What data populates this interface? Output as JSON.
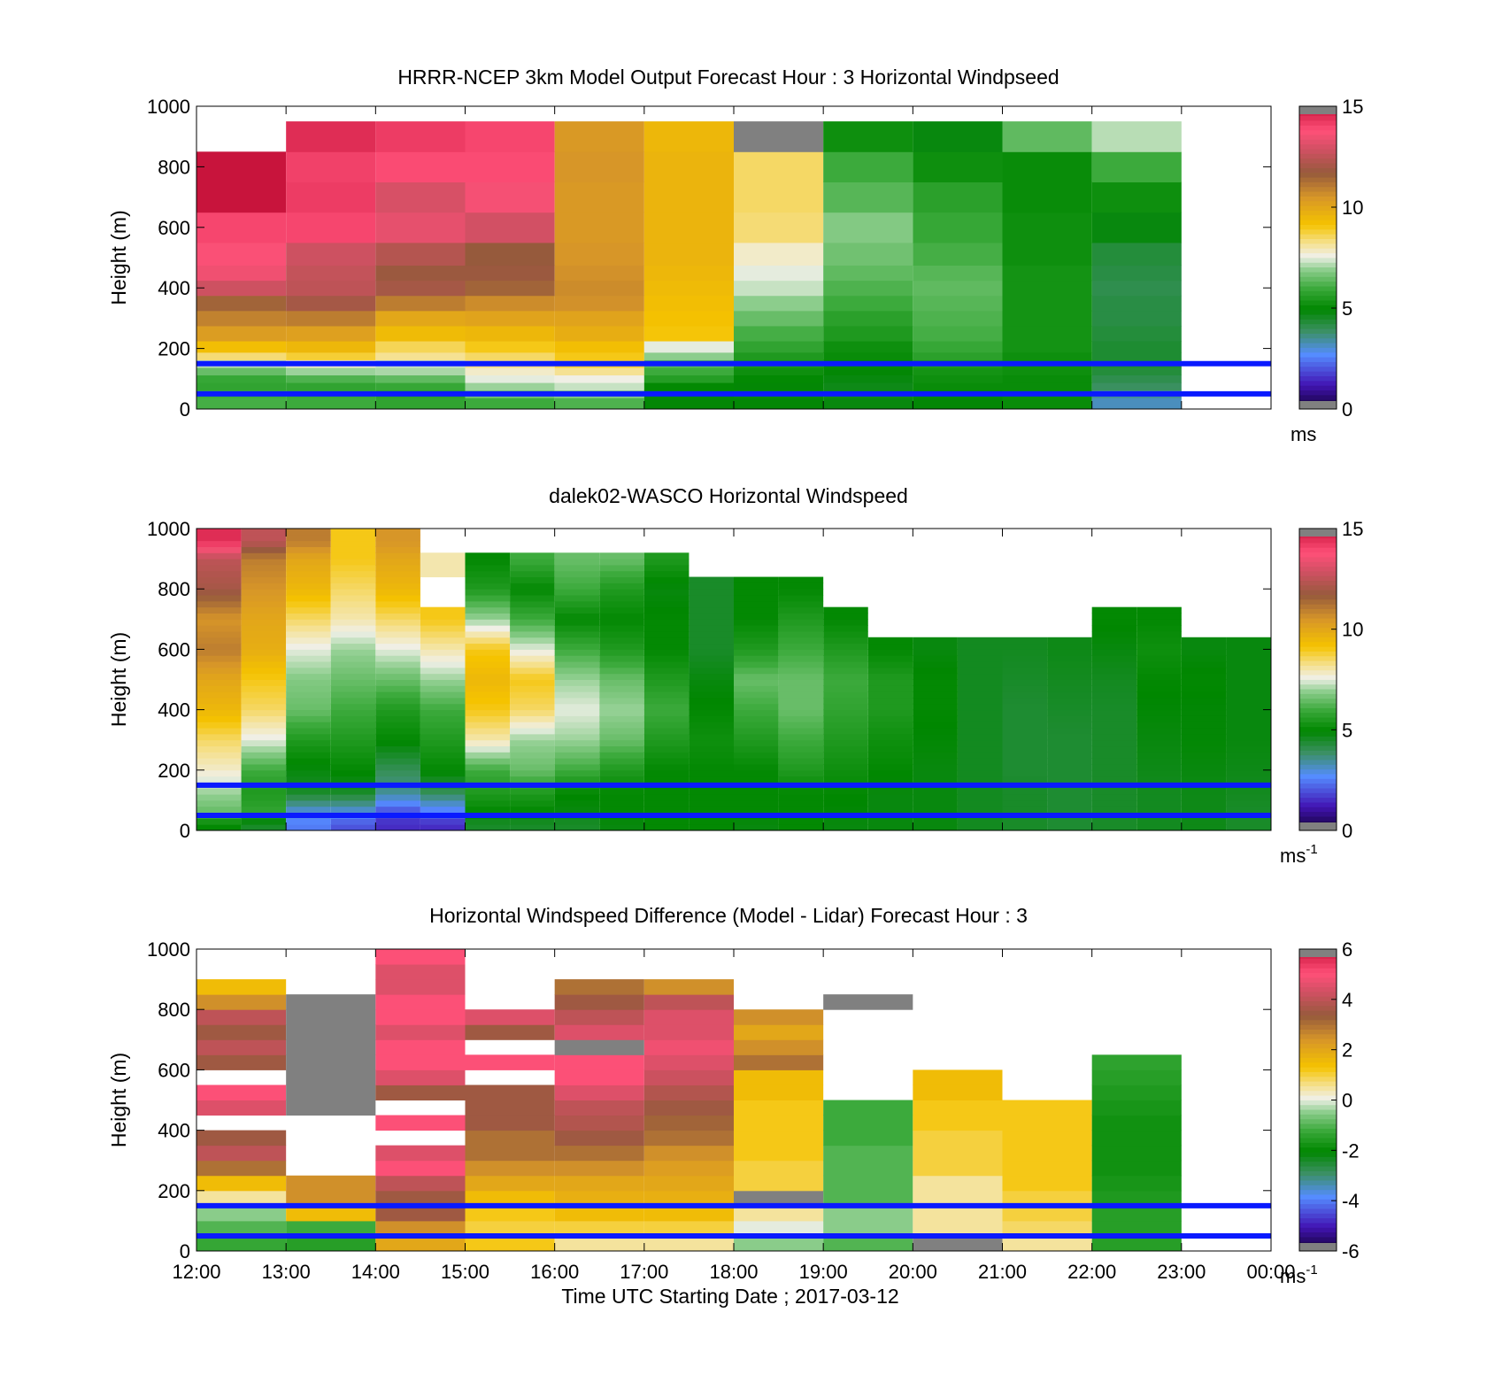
{
  "figure": {
    "shared_xlabel": "Time UTC  Starting Date ; 2017-03-12",
    "x_tick_labels": [
      "12:00",
      "13:00",
      "14:00",
      "15:00",
      "16:00",
      "17:00",
      "18:00",
      "19:00",
      "20:00",
      "21:00",
      "22:00",
      "23:00",
      "00:00"
    ],
    "y_tick_labels": [
      "0",
      "200",
      "400",
      "600",
      "800",
      "1000"
    ]
  },
  "chart_data": [
    {
      "type": "heatmap",
      "title": "HRRR-NCEP 3km Model Output   Forecast Hour : 3 Horizontal Windpseed",
      "ylabel": "Height (m)",
      "xlabel": "",
      "xlim_hours": [
        12,
        24
      ],
      "ylim": [
        0,
        1000
      ],
      "grid": false,
      "reference_lines_m": [
        150,
        50
      ],
      "reference_line_color": "#0a1aff",
      "colorbar": {
        "min": 0,
        "max": 15,
        "ticks": [
          "0",
          "5",
          "10",
          "15"
        ],
        "unit_base": "ms",
        "unit_sup": ""
      },
      "heights": [
        25,
        50,
        75,
        100,
        125,
        150,
        175,
        200,
        250,
        300,
        350,
        400,
        450,
        500,
        600,
        700,
        800,
        900
      ],
      "columns": [
        {
          "start_hour": 12,
          "values": [
            6.1,
            6.0,
            5.8,
            5.9,
            6.5,
            7.2,
            8.4,
            9.3,
            10.3,
            10.9,
            11.5,
            12.8,
            13.5,
            13.7,
            14.0,
            15.0,
            15.0,
            null
          ]
        },
        {
          "start_hour": 13,
          "values": [
            6.0,
            5.9,
            5.8,
            6.2,
            7.0,
            7.8,
            8.8,
            9.5,
            10.2,
            11.0,
            12.0,
            12.5,
            12.6,
            12.8,
            14.0,
            14.2,
            14.1,
            14.5
          ]
        },
        {
          "start_hour": 14,
          "values": [
            5.8,
            5.7,
            5.9,
            6.4,
            7.1,
            7.3,
            8.2,
            8.6,
            9.4,
            10.0,
            11.0,
            12.0,
            11.8,
            12.3,
            13.3,
            13.0,
            13.9,
            14.2
          ]
        },
        {
          "start_hour": 15,
          "values": [
            6.0,
            6.6,
            7.0,
            7.5,
            7.8,
            8.3,
            8.5,
            9.0,
            9.5,
            10.1,
            10.7,
            11.5,
            11.8,
            11.7,
            12.9,
            13.6,
            13.9,
            14.0
          ]
        },
        {
          "start_hour": 16,
          "values": [
            6.2,
            6.8,
            7.3,
            7.6,
            8.2,
            8.8,
            9.0,
            9.3,
            9.8,
            10.1,
            10.6,
            10.7,
            10.6,
            10.5,
            10.4,
            10.4,
            10.5,
            10.4
          ]
        },
        {
          "start_hour": 17,
          "values": [
            4.9,
            4.9,
            5.0,
            5.6,
            6.0,
            6.3,
            6.9,
            7.5,
            9.1,
            9.2,
            9.3,
            9.4,
            9.5,
            9.6,
            9.6,
            9.6,
            9.6,
            9.5
          ]
        },
        {
          "start_hour": 18,
          "values": [
            4.9,
            4.8,
            4.9,
            5.0,
            5.2,
            5.4,
            5.5,
            5.8,
            6.1,
            6.5,
            6.9,
            7.3,
            7.5,
            7.8,
            8.4,
            8.5,
            8.5,
            15.2
          ]
        },
        {
          "start_hour": 19,
          "values": [
            4.8,
            4.7,
            4.7,
            4.8,
            4.9,
            5.0,
            5.1,
            5.2,
            5.5,
            5.7,
            6.0,
            6.2,
            6.4,
            6.6,
            6.8,
            6.3,
            6.0,
            5.2
          ]
        },
        {
          "start_hour": 20,
          "values": [
            4.9,
            5.0,
            5.1,
            5.2,
            5.3,
            5.5,
            5.7,
            5.9,
            6.1,
            6.2,
            6.3,
            6.4,
            6.3,
            6.1,
            5.9,
            5.7,
            5.2,
            4.8
          ]
        },
        {
          "start_hour": 21,
          "values": [
            5.1,
            5.1,
            5.1,
            5.1,
            5.2,
            5.2,
            5.2,
            5.3,
            5.3,
            5.3,
            5.3,
            5.3,
            5.3,
            5.2,
            5.2,
            5.1,
            5.1,
            6.4
          ]
        },
        {
          "start_hour": 22,
          "values": [
            3.2,
            3.5,
            3.9,
            4.1,
            4.3,
            4.4,
            4.4,
            4.4,
            4.3,
            4.2,
            4.2,
            4.1,
            4.2,
            4.3,
            4.8,
            5.2,
            6.0,
            7.2
          ]
        },
        {
          "start_hour": 23,
          "values": [
            null,
            null,
            null,
            null,
            null,
            null,
            null,
            null,
            null,
            null,
            null,
            null,
            null,
            null,
            null,
            null,
            null,
            null
          ]
        }
      ]
    },
    {
      "type": "heatmap",
      "title": "dalek02-WASCO  Horizontal Windspeed",
      "ylabel": "Height (m)",
      "xlabel": "",
      "xlim_hours": [
        12,
        24
      ],
      "ylim": [
        0,
        1000
      ],
      "grid": false,
      "reference_lines_m": [
        150,
        50
      ],
      "reference_line_color": "#0a1aff",
      "colorbar": {
        "min": 0,
        "max": 15,
        "ticks": [
          "0",
          "5",
          "10",
          "15"
        ],
        "unit_base": "ms",
        "unit_sup": "-1"
      },
      "profile_bins_m": [
        20,
        65,
        125,
        200,
        300,
        400,
        500,
        600,
        700,
        800,
        900,
        960
      ],
      "profiles": [
        {
          "hour": 12.0,
          "values": [
            5.0,
            6.5,
            7.0,
            7.8,
            8.5,
            9.5,
            10.0,
            11.0,
            10.5,
            12.0,
            12.5,
            14.5
          ]
        },
        {
          "hour": 12.5,
          "values": [
            4.5,
            5.8,
            5.5,
            6.0,
            7.5,
            8.5,
            9.0,
            9.8,
            10.0,
            10.5,
            11.0,
            12.5
          ]
        },
        {
          "hour": 13.0,
          "values": [
            2.5,
            3.0,
            4.5,
            4.8,
            5.5,
            6.5,
            6.8,
            7.5,
            8.5,
            9.5,
            10.0,
            11.0
          ]
        },
        {
          "hour": 13.5,
          "values": [
            2.0,
            3.0,
            4.5,
            5.0,
            5.5,
            6.0,
            6.5,
            7.0,
            8.0,
            8.5,
            9.0,
            9.0
          ]
        },
        {
          "hour": 14.0,
          "values": [
            1.5,
            2.0,
            3.5,
            4.0,
            5.0,
            5.5,
            6.5,
            7.5,
            8.5,
            9.5,
            10.0,
            10.5
          ]
        },
        {
          "hour": 14.5,
          "values": [
            1.5,
            2.5,
            4.0,
            5.0,
            5.5,
            6.0,
            7.0,
            8.0,
            9.0,
            null,
            8.0,
            null
          ]
        },
        {
          "hour": 15.0,
          "values": [
            4.5,
            5.0,
            5.5,
            6.0,
            8.0,
            9.0,
            9.5,
            9.0,
            7.0,
            5.5,
            5.0,
            null
          ]
        },
        {
          "hour": 15.5,
          "values": [
            4.5,
            5.0,
            5.5,
            6.5,
            7.0,
            8.5,
            9.0,
            7.5,
            6.0,
            5.0,
            6.0,
            null
          ]
        },
        {
          "hour": 16.0,
          "values": [
            4.5,
            4.8,
            5.0,
            6.0,
            7.0,
            7.5,
            7.0,
            6.0,
            5.0,
            6.0,
            6.5,
            null
          ]
        },
        {
          "hour": 16.5,
          "values": [
            4.8,
            5.0,
            5.0,
            5.5,
            6.5,
            7.0,
            6.5,
            5.5,
            5.0,
            5.5,
            6.5,
            null
          ]
        },
        {
          "hour": 17.0,
          "values": [
            5.0,
            5.0,
            5.0,
            5.0,
            5.5,
            6.0,
            5.5,
            5.0,
            5.0,
            4.8,
            5.5,
            null
          ]
        },
        {
          "hour": 17.5,
          "values": [
            5.0,
            5.0,
            5.0,
            5.0,
            5.2,
            5.0,
            4.8,
            4.5,
            4.5,
            4.5,
            null,
            null
          ]
        },
        {
          "hour": 18.0,
          "values": [
            4.8,
            5.0,
            5.0,
            5.0,
            5.5,
            6.0,
            6.5,
            5.5,
            5.0,
            5.0,
            null,
            null
          ]
        },
        {
          "hour": 18.5,
          "values": [
            5.0,
            5.0,
            5.0,
            5.5,
            6.0,
            6.5,
            6.5,
            6.0,
            5.5,
            5.0,
            null,
            null
          ]
        },
        {
          "hour": 19.0,
          "values": [
            4.8,
            4.9,
            5.0,
            5.2,
            5.5,
            5.8,
            6.0,
            5.5,
            5.0,
            null,
            null,
            null
          ]
        },
        {
          "hour": 19.5,
          "values": [
            4.8,
            4.8,
            4.8,
            5.0,
            5.2,
            5.5,
            5.5,
            5.0,
            null,
            null,
            null,
            null
          ]
        },
        {
          "hour": 20.0,
          "values": [
            4.8,
            4.8,
            4.8,
            4.8,
            4.9,
            5.0,
            5.0,
            4.8,
            null,
            null,
            null,
            null
          ]
        },
        {
          "hour": 20.5,
          "values": [
            4.6,
            4.6,
            4.6,
            4.6,
            4.6,
            4.6,
            4.6,
            4.6,
            null,
            null,
            null,
            null
          ]
        },
        {
          "hour": 21.0,
          "values": [
            4.5,
            4.5,
            4.5,
            4.4,
            4.4,
            4.4,
            4.5,
            4.6,
            null,
            null,
            null,
            null
          ]
        },
        {
          "hour": 21.5,
          "values": [
            4.4,
            4.4,
            4.4,
            4.4,
            4.4,
            4.5,
            4.6,
            4.7,
            null,
            null,
            null,
            null
          ]
        },
        {
          "hour": 22.0,
          "values": [
            4.5,
            4.5,
            4.5,
            4.5,
            4.5,
            4.5,
            4.6,
            4.8,
            5.0,
            null,
            null,
            null
          ]
        },
        {
          "hour": 22.5,
          "values": [
            4.6,
            4.6,
            4.6,
            4.7,
            4.8,
            4.9,
            5.0,
            5.2,
            5.0,
            null,
            null,
            null
          ]
        },
        {
          "hour": 23.0,
          "values": [
            4.7,
            4.7,
            4.7,
            4.8,
            4.9,
            4.9,
            5.0,
            4.8,
            null,
            null,
            null,
            null
          ]
        },
        {
          "hour": 23.5,
          "values": [
            4.5,
            4.5,
            4.6,
            4.7,
            4.8,
            4.8,
            4.8,
            4.8,
            null,
            null,
            null,
            null
          ]
        }
      ]
    },
    {
      "type": "heatmap",
      "title": "Horizontal Windspeed Difference (Model - Lidar) Forecast Hour : 3",
      "ylabel": "Height (m)",
      "xlabel": "Time UTC  Starting Date ; 2017-03-12",
      "xlim_hours": [
        12,
        24
      ],
      "ylim": [
        0,
        1000
      ],
      "grid": false,
      "reference_lines_m": [
        150,
        50
      ],
      "reference_line_color": "#0a1aff",
      "colorbar": {
        "min": -6,
        "max": 6,
        "ticks": [
          "-6",
          "-4",
          "-2",
          "0",
          "2",
          "4",
          "6"
        ],
        "unit_base": "ms",
        "unit_sup": "-1"
      },
      "heights": [
        25,
        75,
        125,
        175,
        225,
        275,
        325,
        375,
        425,
        475,
        525,
        575,
        625,
        675,
        725,
        775,
        825,
        875,
        925,
        975
      ],
      "columns": [
        {
          "start_hour": 12,
          "values": [
            -1.3,
            -1.0,
            -0.5,
            0.5,
            1.5,
            3.0,
            4.0,
            3.5,
            null,
            4.5,
            5.0,
            null,
            3.5,
            4.0,
            3.5,
            4.0,
            2.5,
            1.5,
            null,
            null
          ]
        },
        {
          "start_hour": 13,
          "values": [
            -1.5,
            -1.2,
            1.5,
            2.5,
            2.5,
            null,
            null,
            null,
            null,
            6.5,
            6.5,
            6.5,
            6.5,
            6.5,
            6.5,
            6.5,
            6.5,
            null,
            null,
            null
          ]
        },
        {
          "start_hour": 14,
          "values": [
            2.0,
            2.5,
            3.5,
            3.5,
            4.0,
            5.0,
            4.5,
            null,
            5.0,
            null,
            3.5,
            4.5,
            5.0,
            5.0,
            4.5,
            5.0,
            5.0,
            4.5,
            4.5,
            5.0
          ]
        },
        {
          "start_hour": 15,
          "values": [
            1.2,
            1.0,
            1.2,
            1.5,
            2.0,
            2.5,
            3.0,
            3.0,
            3.5,
            3.5,
            3.5,
            null,
            5.0,
            null,
            3.5,
            4.5,
            null,
            null,
            null,
            null
          ]
        },
        {
          "start_hour": 16,
          "values": [
            0.5,
            1.0,
            1.5,
            1.8,
            2.0,
            2.5,
            3.0,
            3.5,
            3.8,
            4.0,
            4.5,
            5.0,
            5.0,
            6.5,
            4.5,
            4.0,
            3.5,
            3.0,
            null,
            null
          ]
        },
        {
          "start_hour": 17,
          "values": [
            0.5,
            1.0,
            1.5,
            1.8,
            2.0,
            2.2,
            2.5,
            3.0,
            3.2,
            3.5,
            3.8,
            4.2,
            4.5,
            4.8,
            4.5,
            4.5,
            4.0,
            2.5,
            null,
            null
          ]
        },
        {
          "start_hour": 18,
          "values": [
            -0.5,
            0.0,
            0.5,
            6.5,
            1.0,
            1.0,
            1.2,
            1.2,
            1.2,
            1.2,
            1.5,
            1.5,
            3.0,
            2.5,
            2.0,
            2.5,
            null,
            null,
            null,
            null
          ]
        },
        {
          "start_hour": 19,
          "values": [
            -1.0,
            -0.5,
            -0.5,
            -1.0,
            -1.0,
            -1.0,
            -1.0,
            -1.2,
            -1.2,
            -1.2,
            null,
            null,
            null,
            null,
            null,
            null,
            6.5,
            null,
            null,
            null
          ]
        },
        {
          "start_hour": 20,
          "values": [
            6.5,
            0.5,
            0.5,
            0.5,
            0.5,
            1.0,
            1.0,
            1.0,
            1.2,
            1.2,
            1.5,
            1.5,
            null,
            null,
            null,
            null,
            null,
            null,
            null,
            null
          ]
        },
        {
          "start_hour": 21,
          "values": [
            0.5,
            0.8,
            1.0,
            1.0,
            1.2,
            1.2,
            1.2,
            1.2,
            1.2,
            1.2,
            null,
            null,
            null,
            null,
            null,
            null,
            null,
            null,
            null,
            null
          ]
        },
        {
          "start_hour": 22,
          "values": [
            -1.5,
            -1.5,
            -1.5,
            -1.6,
            -1.7,
            -1.8,
            -1.8,
            -1.8,
            -1.8,
            -1.7,
            -1.6,
            -1.5,
            -1.4,
            null,
            null,
            null,
            null,
            null,
            null,
            null
          ]
        },
        {
          "start_hour": 23,
          "values": [
            null,
            null,
            null,
            null,
            null,
            null,
            null,
            null,
            null,
            null,
            null,
            null,
            null,
            null,
            null,
            null,
            null,
            null,
            null,
            null
          ]
        }
      ]
    }
  ]
}
